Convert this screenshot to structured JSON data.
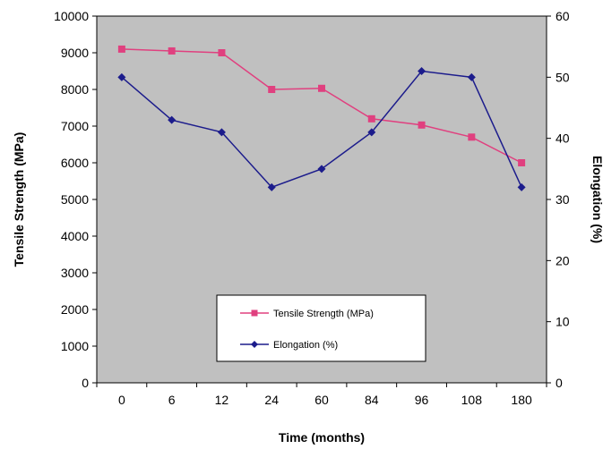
{
  "chart_data": {
    "type": "line",
    "categories": [
      "0",
      "6",
      "12",
      "24",
      "60",
      "84",
      "96",
      "108",
      "180"
    ],
    "xlabel": "Time (months)",
    "ylabel_left": "Tensile Strength (MPa)",
    "ylabel_right": "Elongation (%)",
    "ylim_left": [
      0,
      10000
    ],
    "ylim_right": [
      0,
      60
    ],
    "yticks_left": [
      0,
      1000,
      2000,
      3000,
      4000,
      5000,
      6000,
      7000,
      8000,
      9000,
      10000
    ],
    "yticks_right": [
      0,
      10,
      20,
      30,
      40,
      50,
      60
    ],
    "grid": false,
    "plot_background": "#c0c0c0",
    "legend_position": "bottom-center",
    "series": [
      {
        "name": "Tensile Strength (MPa)",
        "axis": "left",
        "color": "#e0407f",
        "marker": "square",
        "values": [
          9100,
          9050,
          9000,
          8000,
          8030,
          7200,
          7030,
          6700,
          6000
        ]
      },
      {
        "name": "Elongation (%)",
        "axis": "right",
        "color": "#1c1c8c",
        "marker": "diamond",
        "values": [
          50,
          43,
          41,
          32,
          35,
          41,
          51,
          50,
          32
        ]
      }
    ]
  }
}
